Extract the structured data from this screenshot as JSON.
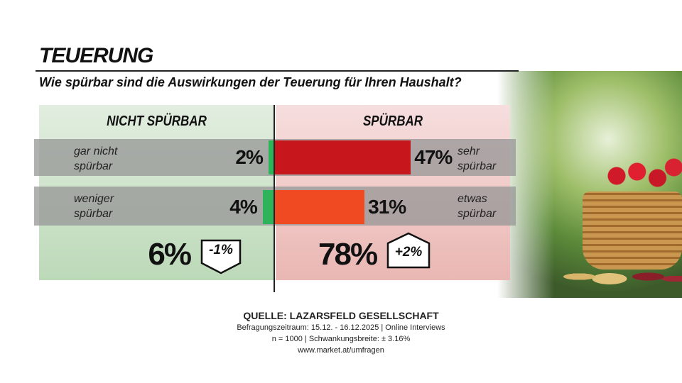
{
  "chart_data": {
    "type": "diverging-bar",
    "title": "TEUERUNG",
    "subtitle": "Wie spürbar sind die Auswirkungen der Teuerung für Ihren Haushalt?",
    "left_header": "NICHT SPÜRBAR",
    "right_header": "SPÜRBAR",
    "left_categories": [
      "gar nicht spürbar",
      "weniger spürbar"
    ],
    "right_categories": [
      "sehr spürbar",
      "etwas spürbar"
    ],
    "series": [
      {
        "name": "NICHT SPÜRBAR",
        "color": "#2db35a",
        "values": [
          2,
          4
        ],
        "value_labels": [
          "2%",
          "4%"
        ]
      },
      {
        "name": "SPÜRBAR",
        "colors": [
          "#c8161d",
          "#f04a23"
        ],
        "values": [
          47,
          31
        ],
        "value_labels": [
          "47%",
          "31%"
        ]
      }
    ],
    "totals": [
      {
        "value": 6,
        "label": "6%",
        "change": {
          "value": -1,
          "label": "-1%"
        }
      },
      {
        "value": 78,
        "label": "78%",
        "change": {
          "value": 2,
          "label": "+2%"
        }
      }
    ],
    "source": "QUELLE:  LAZARSFELD GESELLSCHAFT",
    "notes": [
      "Befragungszeitraum:  15.12. - 16.12.2025  | Online Interviews",
      "n = 1000 |  Schwankungsbreite: ± 3.16%",
      "www.market.at/umfragen"
    ]
  }
}
